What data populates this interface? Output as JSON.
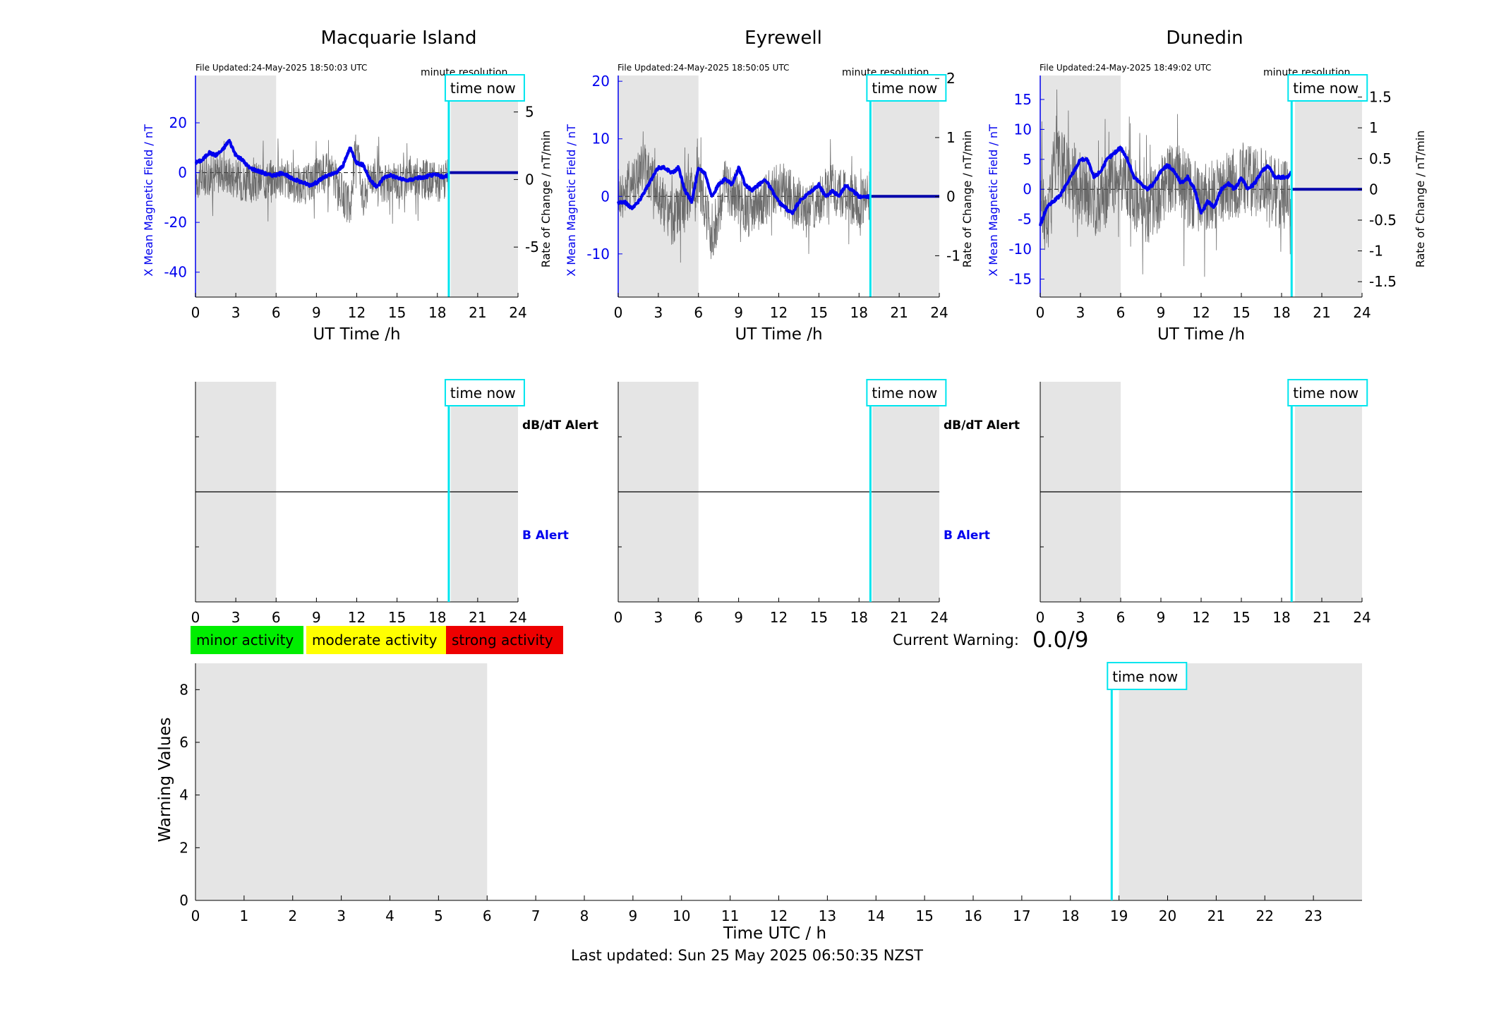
{
  "stations": [
    {
      "name": "Macquarie Island",
      "file_updated": "File Updated:24-May-2025 18:50:03 UTC",
      "resolution_label": "minute resolution",
      "time_now_label": "time now",
      "left_ylabel": "X Mean Magnetic Field / nT",
      "right_ylabel": "Rate of Change / nT/min",
      "xlabel": "UT Time /h",
      "left_ticks": [
        20,
        0,
        -20,
        -40
      ],
      "left_tick_labels": [
        "20",
        "0",
        "-20",
        "-40"
      ],
      "right_ticks": [
        5,
        0,
        -5
      ],
      "right_tick_labels": [
        "5",
        "0",
        "-5"
      ],
      "x_ticks": [
        0,
        3,
        6,
        9,
        12,
        15,
        18,
        21,
        24
      ],
      "x_tick_labels": [
        "0",
        "3",
        "6",
        "9",
        "12",
        "15",
        "18",
        "21",
        "24"
      ],
      "dbdt_alert_label": "dB/dT Alert",
      "b_alert_label": "B Alert"
    },
    {
      "name": "Eyrewell",
      "file_updated": "File Updated:24-May-2025 18:50:05 UTC",
      "resolution_label": "minute resolution",
      "time_now_label": "time now",
      "left_ylabel": "X Mean Magnetic Field / nT",
      "right_ylabel": "Rate of Change / nT/min",
      "xlabel": "UT Time /h",
      "left_ticks": [
        20,
        10,
        0,
        -10
      ],
      "left_tick_labels": [
        "20",
        "10",
        "0",
        "-10"
      ],
      "right_ticks": [
        2,
        1,
        0,
        -1
      ],
      "right_tick_labels": [
        "2",
        "1",
        "0",
        "-1"
      ],
      "x_ticks": [
        0,
        3,
        6,
        9,
        12,
        15,
        18,
        21,
        24
      ],
      "x_tick_labels": [
        "0",
        "3",
        "6",
        "9",
        "12",
        "15",
        "18",
        "21",
        "24"
      ],
      "dbdt_alert_label": "dB/dT Alert",
      "b_alert_label": "B Alert"
    },
    {
      "name": "Dunedin",
      "file_updated": "File Updated:24-May-2025 18:49:02 UTC",
      "resolution_label": "minute resolution",
      "time_now_label": "time now",
      "left_ylabel": "X Mean Magnetic Field / nT",
      "right_ylabel": "Rate of Change / nT/min",
      "xlabel": "UT Time /h",
      "left_ticks": [
        15,
        10,
        5,
        0,
        -5,
        -10,
        -15
      ],
      "left_tick_labels": [
        "15",
        "10",
        "5",
        "0",
        "-5",
        "-10",
        "-15"
      ],
      "right_ticks": [
        1.5,
        1,
        0.5,
        0,
        -0.5,
        -1,
        -1.5
      ],
      "right_tick_labels": [
        "1.5",
        "1",
        "0.5",
        "0",
        "-0.5",
        "-1",
        "-1.5"
      ],
      "x_ticks": [
        0,
        3,
        6,
        9,
        12,
        15,
        18,
        21,
        24
      ],
      "x_tick_labels": [
        "0",
        "3",
        "6",
        "9",
        "12",
        "15",
        "18",
        "21",
        "24"
      ],
      "dbdt_alert_label": "",
      "b_alert_label": ""
    }
  ],
  "legend": {
    "minor": "minor activity",
    "moderate": "moderate activity",
    "strong": "strong activity"
  },
  "current_warning": {
    "label": "Current Warning:",
    "value": "0.0/9"
  },
  "warning_panel": {
    "ylabel": "Warning Values",
    "xlabel": "Time UTC / h",
    "time_now_label": "time now",
    "y_ticks": [
      0,
      2,
      4,
      6,
      8
    ],
    "y_tick_labels": [
      "0",
      "2",
      "4",
      "6",
      "8"
    ],
    "x_ticks": [
      0,
      1,
      2,
      3,
      4,
      5,
      6,
      7,
      8,
      9,
      10,
      11,
      12,
      13,
      14,
      15,
      16,
      17,
      18,
      19,
      20,
      21,
      22,
      23
    ],
    "x_tick_labels": [
      "0",
      "1",
      "2",
      "3",
      "4",
      "5",
      "6",
      "7",
      "8",
      "9",
      "10",
      "11",
      "12",
      "13",
      "14",
      "15",
      "16",
      "17",
      "18",
      "19",
      "20",
      "21",
      "22",
      "23"
    ]
  },
  "footer": "Last updated: Sun 25 May 2025 06:50:35 NZST",
  "colors": {
    "field": "#0000ee",
    "rate": "#555555",
    "time_now": "#00e5ee",
    "night_shade": "#e5e5e5",
    "minor": "#00ee00",
    "moderate": "#ffff00",
    "strong": "#ee0000"
  },
  "chart_data": [
    {
      "type": "line",
      "title": "Macquarie Island",
      "xlabel": "UT Time /h",
      "ylabel": "X Mean Magnetic Field / nT",
      "y2label": "Rate of Change / nT/min",
      "xlim": [
        0,
        24
      ],
      "ylim": [
        -50,
        39
      ],
      "y2lim": [
        -8.7,
        7.7
      ],
      "night_shading_h": [
        [
          0,
          6
        ],
        [
          19,
          24
        ]
      ],
      "time_now_h": 18.85,
      "grid": false,
      "series": [
        {
          "axis": "left",
          "x": [
            0,
            0.5,
            1,
            1.5,
            2,
            2.5,
            3,
            3.5,
            4,
            4.5,
            5,
            5.5,
            6,
            6.5,
            7,
            7.5,
            8,
            8.5,
            9,
            9.5,
            10,
            10.5,
            11,
            11.5,
            12,
            12.5,
            13,
            13.5,
            14,
            14.5,
            15,
            15.5,
            16,
            16.5,
            17,
            17.5,
            18,
            18.5,
            18.8,
            19,
            24
          ],
          "y": [
            4,
            5,
            8,
            7,
            9,
            13,
            7,
            5,
            2,
            1,
            0,
            -1,
            -1,
            0,
            -2,
            -3,
            -4,
            -5,
            -4,
            -2,
            -1,
            0,
            3,
            10,
            4,
            3,
            -3,
            -6,
            -2,
            -1,
            -2,
            -3,
            -3,
            -2,
            -2,
            -1,
            -1,
            -2,
            -1,
            0,
            0
          ]
        },
        {
          "axis": "right",
          "x": [
            0,
            2,
            4,
            6,
            8,
            10,
            11.5,
            12,
            12.5,
            13,
            14,
            16,
            18,
            18.8
          ],
          "y": [
            0,
            0.6,
            -0.4,
            0.3,
            -0.5,
            0.8,
            -2.2,
            3.2,
            -1.8,
            0.6,
            -0.5,
            0.3,
            -0.2,
            0
          ],
          "noise_amplitude": 1.5
        }
      ]
    },
    {
      "type": "line",
      "title": "Eyrewell",
      "xlabel": "UT Time /h",
      "ylabel": "X Mean Magnetic Field / nT",
      "y2label": "Rate of Change / nT/min",
      "xlim": [
        0,
        24
      ],
      "ylim": [
        -17.5,
        21
      ],
      "y2lim": [
        -1.7,
        2.05
      ],
      "night_shading_h": [
        [
          0,
          6
        ],
        [
          19,
          24
        ]
      ],
      "time_now_h": 18.85,
      "grid": false,
      "series": [
        {
          "axis": "left",
          "x": [
            0,
            0.5,
            1,
            1.5,
            2,
            2.5,
            3,
            3.5,
            4,
            4.5,
            5,
            5.5,
            6,
            6.5,
            7,
            7.5,
            8,
            8.5,
            9,
            9.5,
            10,
            10.5,
            11,
            11.5,
            12,
            12.5,
            13,
            13.5,
            14,
            14.5,
            15,
            15.5,
            16,
            16.5,
            17,
            17.5,
            18,
            18.5,
            18.8,
            19,
            24
          ],
          "y": [
            -1,
            -1,
            -2,
            -1,
            1,
            3,
            5,
            5,
            4,
            5,
            1,
            -1,
            5,
            4,
            0,
            2,
            3,
            2,
            5,
            2,
            1,
            2,
            3,
            1,
            -1,
            -2,
            -3,
            -1,
            0,
            1,
            2,
            0,
            1,
            0,
            2,
            1,
            0,
            0,
            0,
            0,
            0
          ]
        },
        {
          "axis": "right",
          "x": [
            0,
            2,
            4,
            6,
            7,
            8,
            10,
            12,
            14,
            16,
            18,
            18.8
          ],
          "y": [
            0,
            0.5,
            -0.4,
            0.3,
            -0.7,
            0.2,
            -0.3,
            0.2,
            -0.2,
            0.15,
            -0.1,
            0
          ],
          "noise_amplitude": 0.45
        }
      ]
    },
    {
      "type": "line",
      "title": "Dunedin",
      "xlabel": "UT Time /h",
      "ylabel": "X Mean Magnetic Field / nT",
      "y2label": "Rate of Change / nT/min",
      "xlim": [
        0,
        24
      ],
      "ylim": [
        -18,
        19
      ],
      "y2lim": [
        -1.75,
        1.85
      ],
      "night_shading_h": [
        [
          0,
          6
        ],
        [
          19,
          24
        ]
      ],
      "time_now_h": 18.75,
      "grid": false,
      "series": [
        {
          "axis": "left",
          "x": [
            0,
            0.5,
            1,
            1.5,
            2,
            2.5,
            3,
            3.5,
            4,
            4.5,
            5,
            5.5,
            6,
            6.5,
            7,
            7.5,
            8,
            8.5,
            9,
            9.5,
            10,
            10.5,
            11,
            11.5,
            12,
            12.5,
            13,
            13.5,
            14,
            14.5,
            15,
            15.5,
            16,
            16.5,
            17,
            17.5,
            18,
            18.5,
            18.7,
            19,
            24
          ],
          "y": [
            -6,
            -3,
            -2,
            -1,
            1,
            3,
            5,
            5,
            2,
            3,
            5,
            6,
            7,
            5,
            2,
            1,
            0,
            1,
            3,
            4,
            3,
            1,
            2,
            0,
            -4,
            -2,
            -3,
            0,
            1,
            0,
            2,
            0,
            1,
            3,
            4,
            2,
            2,
            2,
            3,
            0,
            0
          ]
        },
        {
          "axis": "right",
          "x": [
            0,
            0.5,
            1,
            2,
            4,
            6,
            8,
            10,
            12,
            14,
            16,
            18,
            18.7
          ],
          "y": [
            0,
            -0.6,
            0.4,
            0.3,
            -0.2,
            0.2,
            -0.3,
            0.2,
            -0.2,
            0.1,
            0.15,
            -0.1,
            0
          ],
          "noise_amplitude": 0.6
        }
      ]
    },
    {
      "type": "line",
      "title": "",
      "xlabel": "Time UTC / h",
      "ylabel": "Warning Values",
      "xlim": [
        0,
        24
      ],
      "ylim": [
        0,
        9
      ],
      "night_shading_h": [
        [
          0,
          6
        ],
        [
          19,
          24
        ]
      ],
      "time_now_h": 18.85,
      "series": []
    }
  ]
}
